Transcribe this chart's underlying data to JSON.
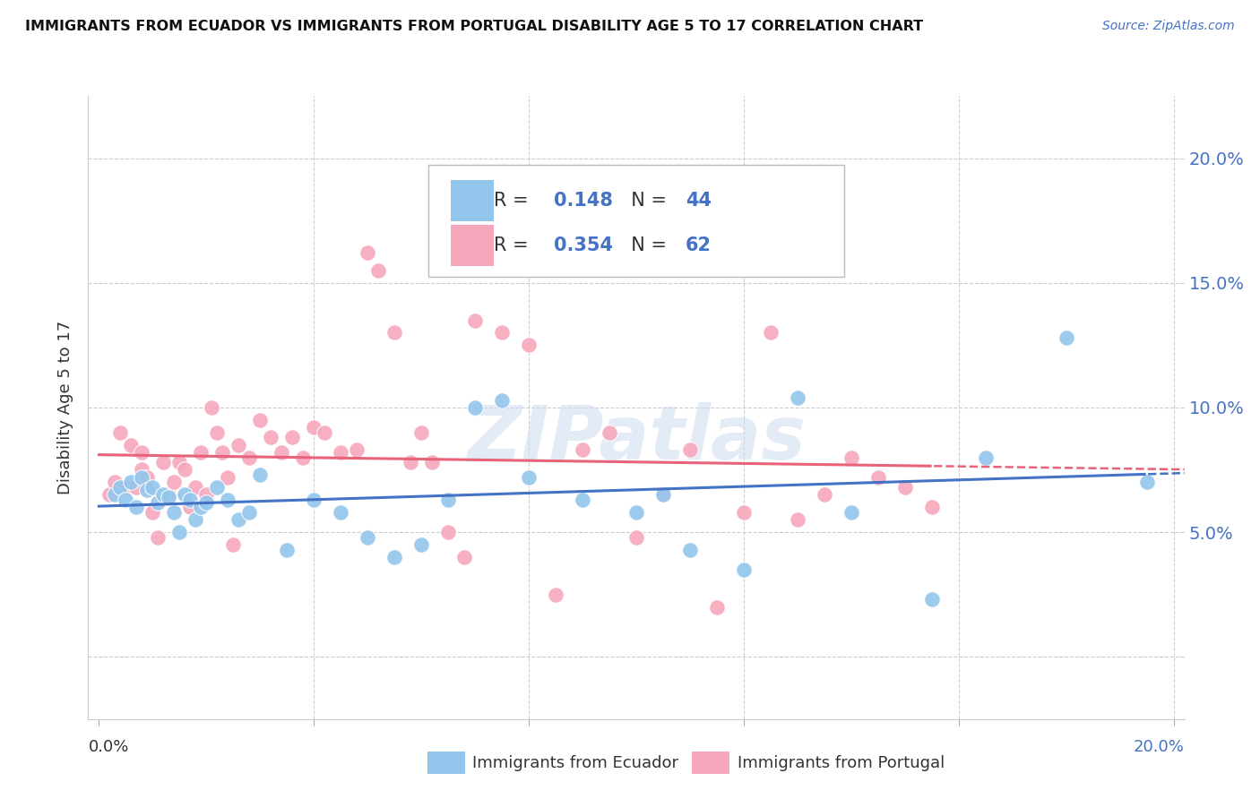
{
  "title": "IMMIGRANTS FROM ECUADOR VS IMMIGRANTS FROM PORTUGAL DISABILITY AGE 5 TO 17 CORRELATION CHART",
  "source": "Source: ZipAtlas.com",
  "ylabel": "Disability Age 5 to 17",
  "yticks": [
    0.0,
    0.05,
    0.1,
    0.15,
    0.2
  ],
  "ytick_labels": [
    "",
    "5.0%",
    "10.0%",
    "15.0%",
    "20.0%"
  ],
  "xticks": [
    0.0,
    0.04,
    0.08,
    0.12,
    0.16,
    0.2
  ],
  "xlim": [
    -0.002,
    0.202
  ],
  "ylim": [
    -0.025,
    0.225
  ],
  "ecuador_R": 0.148,
  "ecuador_N": 44,
  "portugal_R": 0.354,
  "portugal_N": 62,
  "ecuador_color": "#93C6ED",
  "portugal_color": "#F5A8BC",
  "ecuador_line_color": "#4472C4",
  "portugal_line_color": "#E8627A",
  "watermark": "ZIPatlas",
  "legend_label_ecuador": "Immigrants from Ecuador",
  "legend_label_portugal": "Immigrants from Portugal",
  "ecuador_x": [
    0.003,
    0.004,
    0.005,
    0.006,
    0.007,
    0.008,
    0.009,
    0.01,
    0.011,
    0.012,
    0.013,
    0.014,
    0.015,
    0.016,
    0.017,
    0.018,
    0.019,
    0.02,
    0.022,
    0.024,
    0.026,
    0.028,
    0.03,
    0.035,
    0.04,
    0.045,
    0.05,
    0.055,
    0.06,
    0.065,
    0.07,
    0.075,
    0.08,
    0.09,
    0.1,
    0.105,
    0.11,
    0.12,
    0.13,
    0.14,
    0.155,
    0.165,
    0.18,
    0.195
  ],
  "ecuador_y": [
    0.065,
    0.068,
    0.063,
    0.07,
    0.06,
    0.072,
    0.067,
    0.068,
    0.062,
    0.065,
    0.064,
    0.058,
    0.05,
    0.065,
    0.063,
    0.055,
    0.06,
    0.062,
    0.068,
    0.063,
    0.055,
    0.058,
    0.073,
    0.043,
    0.063,
    0.058,
    0.048,
    0.04,
    0.045,
    0.063,
    0.1,
    0.103,
    0.072,
    0.063,
    0.058,
    0.065,
    0.043,
    0.035,
    0.104,
    0.058,
    0.023,
    0.08,
    0.128,
    0.07
  ],
  "portugal_x": [
    0.002,
    0.003,
    0.004,
    0.005,
    0.006,
    0.007,
    0.008,
    0.008,
    0.009,
    0.01,
    0.011,
    0.012,
    0.013,
    0.014,
    0.015,
    0.016,
    0.017,
    0.018,
    0.019,
    0.02,
    0.021,
    0.022,
    0.023,
    0.024,
    0.025,
    0.026,
    0.028,
    0.03,
    0.032,
    0.034,
    0.036,
    0.038,
    0.04,
    0.042,
    0.045,
    0.048,
    0.05,
    0.052,
    0.055,
    0.058,
    0.06,
    0.062,
    0.065,
    0.068,
    0.07,
    0.075,
    0.08,
    0.085,
    0.09,
    0.095,
    0.1,
    0.105,
    0.11,
    0.115,
    0.12,
    0.125,
    0.13,
    0.135,
    0.14,
    0.145,
    0.15,
    0.155
  ],
  "portugal_y": [
    0.065,
    0.07,
    0.09,
    0.068,
    0.085,
    0.068,
    0.075,
    0.082,
    0.072,
    0.058,
    0.048,
    0.078,
    0.065,
    0.07,
    0.078,
    0.075,
    0.06,
    0.068,
    0.082,
    0.065,
    0.1,
    0.09,
    0.082,
    0.072,
    0.045,
    0.085,
    0.08,
    0.095,
    0.088,
    0.082,
    0.088,
    0.08,
    0.092,
    0.09,
    0.082,
    0.083,
    0.162,
    0.155,
    0.13,
    0.078,
    0.09,
    0.078,
    0.05,
    0.04,
    0.135,
    0.13,
    0.125,
    0.025,
    0.083,
    0.09,
    0.048,
    0.065,
    0.083,
    0.02,
    0.058,
    0.13,
    0.055,
    0.065,
    0.08,
    0.072,
    0.068,
    0.06
  ]
}
